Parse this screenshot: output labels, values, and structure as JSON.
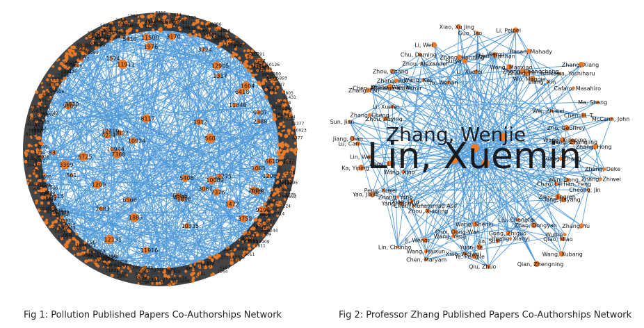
{
  "captions": {
    "fig1": "Fig 1: Pollution Published Papers Co-Authorships Network",
    "fig2": "Fig 2: Professor Zhang Published Papers Co-Authorships Network"
  },
  "colors": {
    "edge": "#3d8fd6",
    "node": "#e87a2a",
    "label": "#111111"
  },
  "network1": {
    "labels": [
      "6566",
      "6725",
      "10924",
      "3822",
      "1610",
      "1976",
      "6307",
      "2388",
      "11846",
      "7360",
      "6610",
      "3724",
      "2684",
      "3870",
      "6418",
      "5613",
      "561",
      "3170",
      "10944",
      "1883",
      "3758",
      "10335",
      "5408",
      "10089",
      "11916",
      "83",
      "9198",
      "3087",
      "4198",
      "1524",
      "11500",
      "5410",
      "12275",
      "1472",
      "7028",
      "560",
      "4234",
      "7376",
      "12905",
      "1912",
      "1604",
      "6606",
      "12131",
      "12419",
      "9105",
      "1085",
      "3399",
      "11911",
      "8117",
      "1209",
      "1208",
      "2683",
      "1317"
    ]
  },
  "network2": {
    "hub_labels": [
      "Lin, Xuemin",
      "Zhang, Wenjie"
    ],
    "labels": [
      "Huang, Zhang",
      "Zhang, Deke",
      "Zhang, Zhiwei",
      "Wen, Dong",
      "Cheong, Jin",
      "Chao, LeiTian, Feng",
      "Zhou, Jingren",
      "Tang, Jiayang",
      "Zhang, Yu",
      "Wubin",
      "Qiao, Miao",
      "Zhao, Dongyan",
      "Wang, Xubang",
      "Liu, Chengfei",
      "Qian, Zhengning",
      "Gong, Zhiguo",
      "Huang, Xiaoyi",
      "Jia, Sulin",
      "Qiu, Zhuo",
      "Yuan, Ye",
      "Ye, Pengjie",
      "Wang, Shenlu",
      "Xiao, Weiwei",
      "Choi, Dong-Wan",
      "Wang, Yang",
      "Wang, Haixun",
      "Chen, Maryam",
      "Ji, Wenqi",
      "Lin, Chunbo",
      "Zhou, Xiaoling",
      "Chen, Muhammad Asif",
      "Xiao, Ling",
      "Yang, Yang",
      "Zhang, Yang",
      "Yao, Jiajie",
      "Peng, Yuwei",
      "Wang, Xiao",
      "Ka, Yiping",
      "Zhou, Lei",
      "Lin, Wei",
      "Lu, Can",
      "Jiang, Dian",
      "Sun, Jian",
      "Zhang, Cheng",
      "Zhou, Aoying",
      "Li, Xuefei",
      "Zhang, Fan",
      "Chen, Muhammad Aamir",
      "Zhang, Wenjie",
      "Zhang, Rui",
      "Zhou, Zhang",
      "Wang, Kai",
      "Chu, Deming",
      "Zhou, Alexander",
      "Yu, Wenan",
      "Li, Wei",
      "Zhang, Hanning",
      "Surya",
      "Xiao, Xu Jing",
      "Li, Xuefei",
      "Guo, Tao",
      "Liu, Wenxi",
      "Chen, Tianhan",
      "Wang, Manxiao",
      "Li, Peipei",
      "Zhang, Chengcheng",
      "Hasan, Mahady",
      "Zhang, Jin",
      "Wu, Maggie",
      "Ishikawa, Yoshiharu",
      "Liang, Xin",
      "Zhang, Xiang",
      "Cafaro, Masahiro",
      "Wei, Zhiwei",
      "Ma, Shang",
      "Chen, H. T.",
      "Zhu, Geoffrey",
      "McCann, John",
      "Yang, Zhangjing",
      "Wang, Xiaoping",
      "Zhang, Hong"
    ]
  }
}
